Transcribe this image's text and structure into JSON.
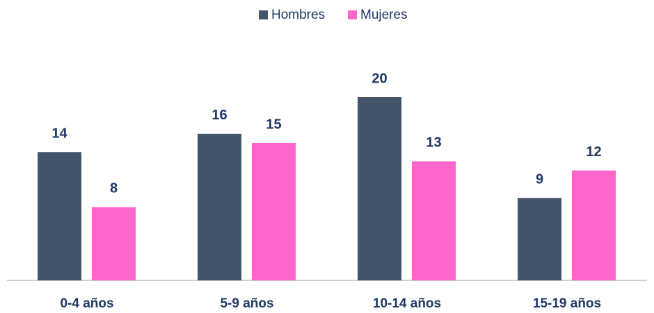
{
  "chart_data": {
    "type": "bar",
    "categories": [
      "0-4 años",
      "5-9 años",
      "10-14 años",
      "15-19 años"
    ],
    "series": [
      {
        "name": "Hombres",
        "color": "#44546a",
        "values": [
          14,
          16,
          20,
          9
        ]
      },
      {
        "name": "Mujeres",
        "color": "#ff66cc",
        "values": [
          8,
          15,
          13,
          12
        ]
      }
    ],
    "legend": "top"
  }
}
